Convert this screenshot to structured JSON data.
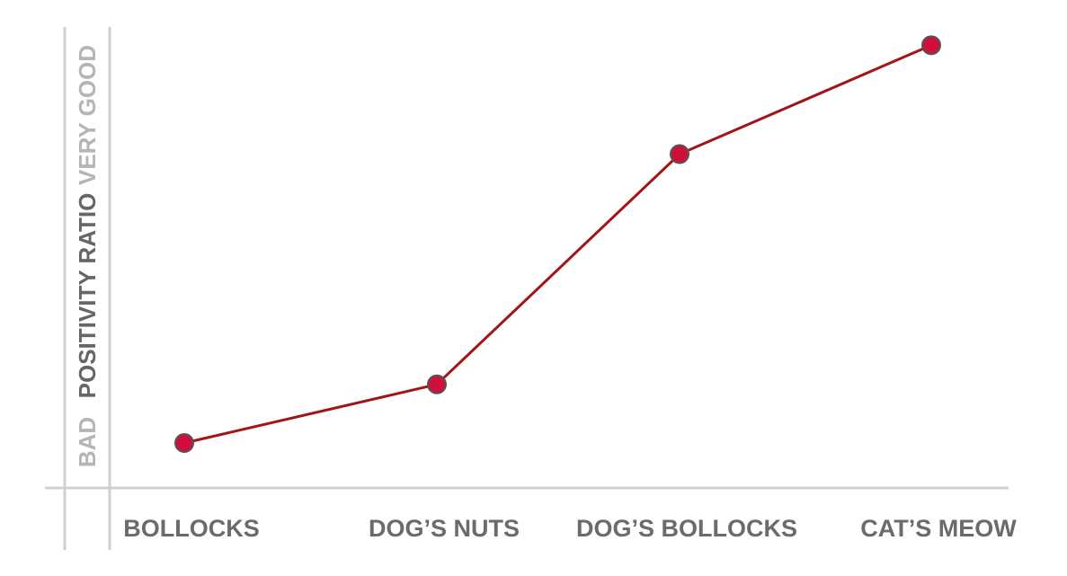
{
  "chart_data": {
    "type": "line",
    "categories": [
      "BOLLOCKS",
      "DOG’S NUTS",
      "DOG’S BOLLOCKS",
      "CAT’S MEOW"
    ],
    "series": [
      {
        "values": [
          0.03,
          0.17,
          0.72,
          0.98
        ],
        "color": "#d0103a"
      }
    ],
    "ylabel": "POSITIVITY RATIO",
    "y_scale_labels": {
      "low": "BAD",
      "high": "VERY GOOD"
    },
    "ylim": [
      0,
      1
    ],
    "grid": false,
    "line_color": "#a31515",
    "axis_color": "#d0d0d0"
  }
}
